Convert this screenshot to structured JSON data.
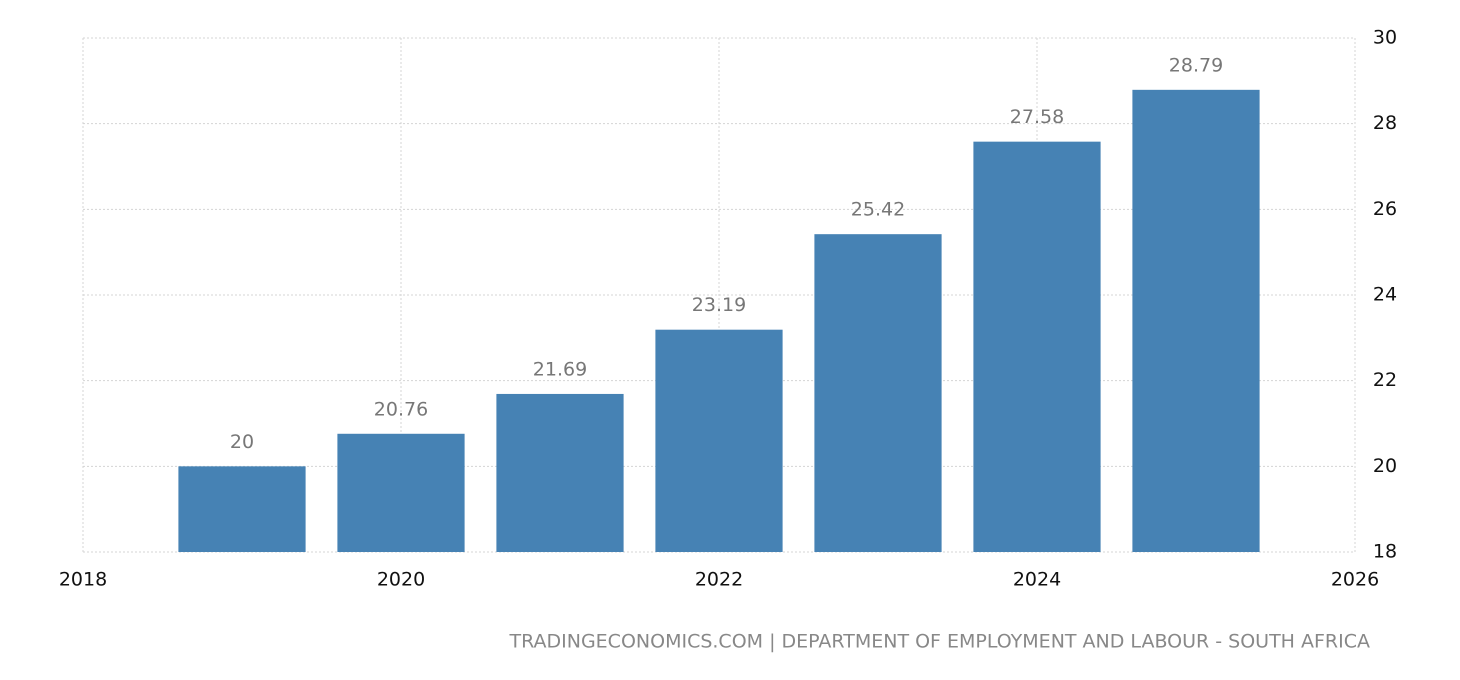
{
  "chart_data": {
    "type": "bar",
    "source": "TRADINGECONOMICS.COM | DEPARTMENT OF EMPLOYMENT AND LABOUR - SOUTH AFRICA",
    "x": [
      2019,
      2020,
      2021,
      2022,
      2023,
      2024,
      2025
    ],
    "values": [
      20,
      20.76,
      21.69,
      23.19,
      25.42,
      27.58,
      28.79
    ],
    "color": "#4682b4",
    "xlim": [
      2018,
      2026
    ],
    "xticks": [
      2018,
      2020,
      2022,
      2024,
      2026
    ],
    "ylim": [
      18,
      30
    ],
    "yticks": [
      18,
      20,
      22,
      24,
      26,
      28,
      30
    ],
    "grid": true,
    "y_axis_side": "right"
  }
}
